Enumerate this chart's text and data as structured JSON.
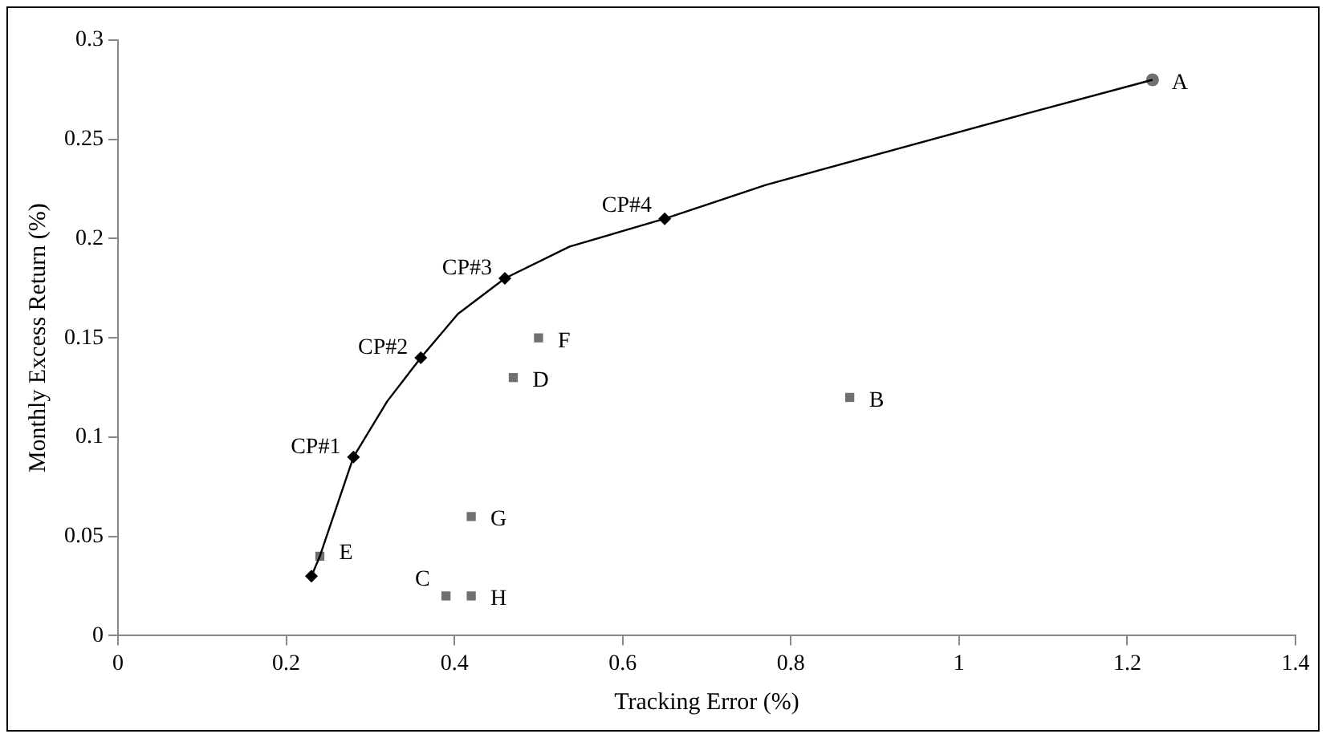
{
  "chart_data": {
    "type": "scatter",
    "xlabel": "Tracking Error (%)",
    "ylabel": "Monthly Excess Return (%)",
    "xlim": [
      0,
      1.4
    ],
    "xticks": [
      0,
      0.2,
      0.4,
      0.6,
      0.8,
      1,
      1.2,
      1.4
    ],
    "ylim": [
      0,
      0.3
    ],
    "yticks": [
      0,
      0.05,
      0.1,
      0.15,
      0.2,
      0.25,
      0.3
    ],
    "grid": false,
    "legend": false,
    "series": [
      {
        "type": "line",
        "color": "#000000",
        "marker": "none",
        "x": [
          0.23,
          0.24,
          0.28,
          0.32,
          0.36,
          0.404,
          0.46,
          0.537,
          0.65,
          0.77,
          1.08,
          1.23
        ],
        "values": [
          0.03,
          0.04,
          0.09,
          0.118,
          0.14,
          0.162,
          0.18,
          0.196,
          0.21,
          0.227,
          0.263,
          0.28
        ]
      },
      {
        "color": "#000000",
        "marker": "diamond",
        "x": [
          0.23,
          0.28,
          0.36,
          0.46,
          0.65
        ],
        "values": [
          0.03,
          0.09,
          0.14,
          0.18,
          0.21
        ]
      },
      {
        "color": "#707070",
        "marker": "square",
        "x": [
          0.87,
          0.39,
          0.47,
          0.24,
          0.5,
          0.42,
          0.42
        ],
        "values": [
          0.12,
          0.02,
          0.13,
          0.04,
          0.15,
          0.06,
          0.02
        ]
      },
      {
        "color": "#707070",
        "marker": "circle",
        "x": [
          1.23
        ],
        "values": [
          0.28
        ]
      }
    ],
    "annotations": [
      {
        "text": "CP#1",
        "x": 0.28,
        "y": 0.09
      },
      {
        "text": "CP#2",
        "x": 0.36,
        "y": 0.14
      },
      {
        "text": "CP#3",
        "x": 0.46,
        "y": 0.18
      },
      {
        "text": "CP#4",
        "x": 0.65,
        "y": 0.21
      },
      {
        "text": "A",
        "x": 1.23,
        "y": 0.28
      },
      {
        "text": "B",
        "x": 0.87,
        "y": 0.12
      },
      {
        "text": "C",
        "x": 0.39,
        "y": 0.02
      },
      {
        "text": "D",
        "x": 0.47,
        "y": 0.13
      },
      {
        "text": "E",
        "x": 0.24,
        "y": 0.04
      },
      {
        "text": "F",
        "x": 0.5,
        "y": 0.15
      },
      {
        "text": "G",
        "x": 0.42,
        "y": 0.06
      },
      {
        "text": "H",
        "x": 0.42,
        "y": 0.02
      }
    ]
  }
}
